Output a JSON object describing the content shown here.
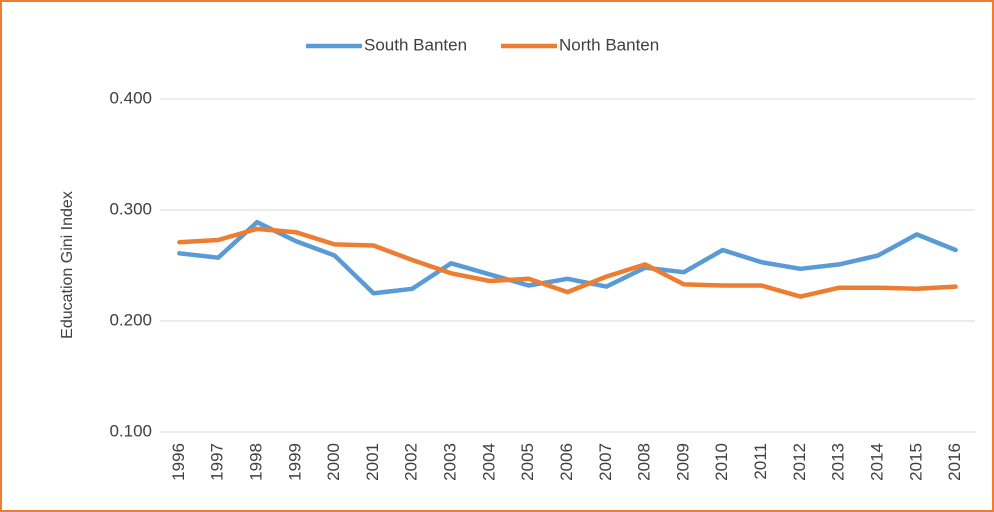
{
  "chart_data": {
    "type": "line",
    "y_label": "Education Gini Index",
    "categories": [
      "1996",
      "1997",
      "1998",
      "1999",
      "2000",
      "2001",
      "2002",
      "2003",
      "2004",
      "2005",
      "2006",
      "2007",
      "2008",
      "2009",
      "2010",
      "2011",
      "2012",
      "2013",
      "2014",
      "2015",
      "2016"
    ],
    "series": [
      {
        "name": "South Banten",
        "color": "#5b9bd5",
        "values": [
          0.261,
          0.257,
          0.289,
          0.272,
          0.259,
          0.225,
          0.229,
          0.252,
          0.242,
          0.232,
          0.238,
          0.231,
          0.248,
          0.244,
          0.264,
          0.253,
          0.247,
          0.251,
          0.259,
          0.278,
          0.264
        ]
      },
      {
        "name": "North Banten",
        "color": "#ed7d31",
        "values": [
          0.271,
          0.273,
          0.283,
          0.28,
          0.269,
          0.268,
          0.255,
          0.243,
          0.236,
          0.238,
          0.226,
          0.24,
          0.251,
          0.233,
          0.232,
          0.232,
          0.222,
          0.23,
          0.23,
          0.229,
          0.231
        ]
      }
    ],
    "ylim": [
      0.1,
      0.4
    ],
    "yticks": [
      {
        "value": 0.1,
        "label": "0.100"
      },
      {
        "value": 0.2,
        "label": "0.200"
      },
      {
        "value": 0.3,
        "label": "0.300"
      },
      {
        "value": 0.4,
        "label": "0.400"
      }
    ],
    "grid": true,
    "legend": "top"
  }
}
